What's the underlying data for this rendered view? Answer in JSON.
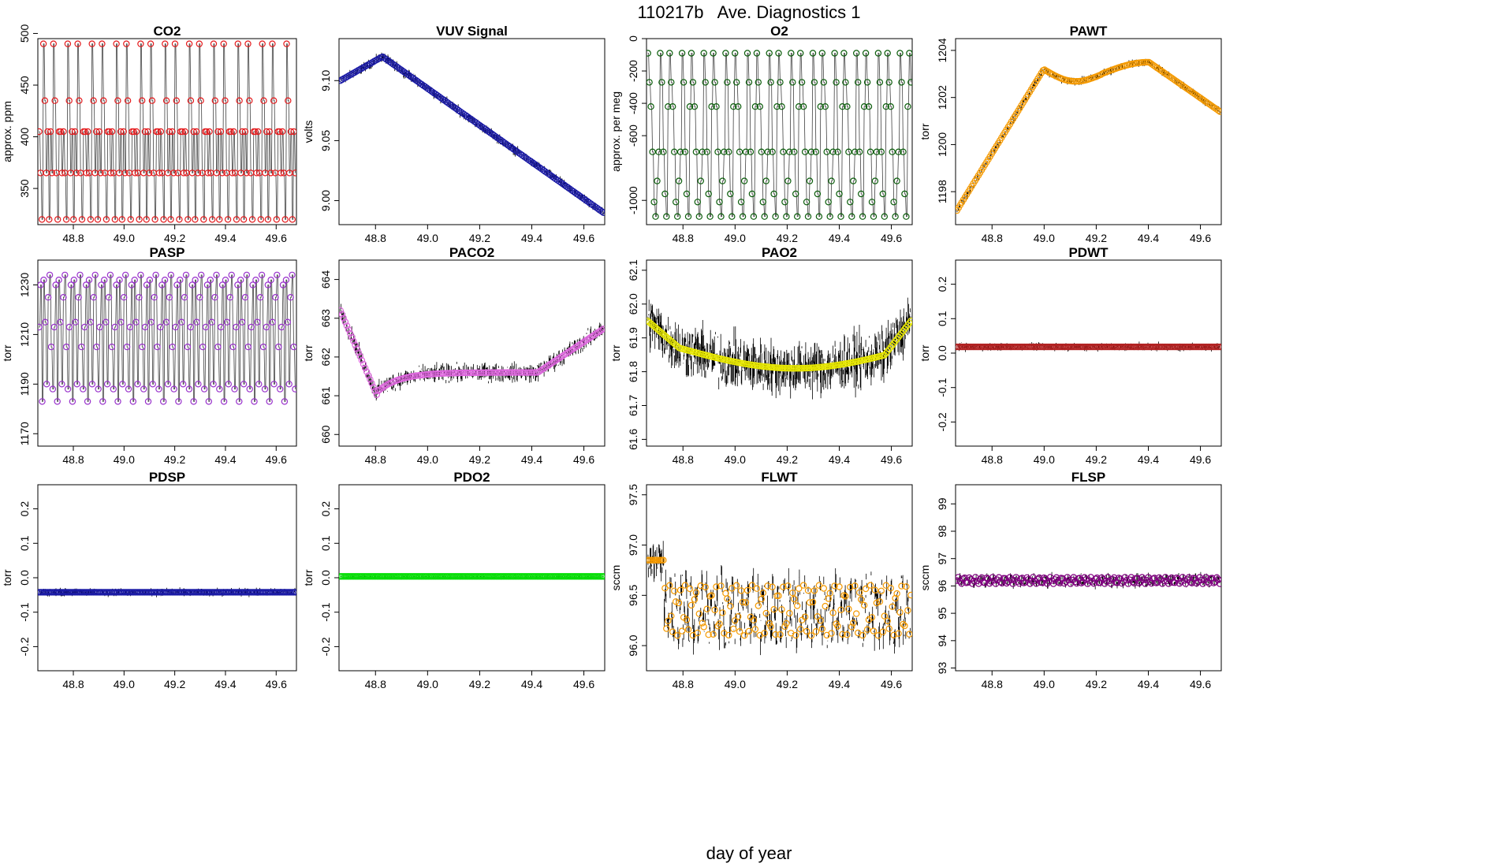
{
  "figure": {
    "title": "110217b   Ave. Diagnostics 1",
    "xlabel": "day of year"
  },
  "colors": {
    "red": "#e41a1c",
    "blue": "#1a1aa6",
    "darkgreen": "#0b5d0b",
    "orange": "#f59a00",
    "purple": "#9932cc",
    "violet": "#dd66dd",
    "yellow": "#e6e600",
    "darkred": "#b22222",
    "green": "#00dd00",
    "darkpurple": "#800080"
  },
  "chart_data": [
    {
      "type": "scatter",
      "title": "CO2",
      "ylabel": "approx. ppm",
      "xlabel": "",
      "xlim": [
        48.66,
        49.68
      ],
      "ylim": [
        315,
        495
      ],
      "xticks": [
        "48.8",
        "49.0",
        "49.2",
        "49.4",
        "49.6"
      ],
      "xtick_values": [
        48.8,
        49.0,
        49.2,
        49.4,
        49.6
      ],
      "yticks": [
        "350",
        "400",
        "450",
        "500"
      ],
      "ytick_values": [
        350,
        400,
        450,
        500
      ],
      "color": "red",
      "pattern": "co2",
      "n_points": 180,
      "noise": 0
    },
    {
      "type": "scatter",
      "title": "VUV Signal",
      "ylabel": "volts",
      "xlabel": "",
      "xlim": [
        48.66,
        49.68
      ],
      "ylim": [
        8.98,
        9.135
      ],
      "xticks": [
        "48.8",
        "49.0",
        "49.2",
        "49.4",
        "49.6"
      ],
      "xtick_values": [
        48.8,
        49.0,
        49.2,
        49.4,
        49.6
      ],
      "yticks": [
        "9.00",
        "9.05",
        "9.10"
      ],
      "ytick_values": [
        9.0,
        9.05,
        9.1
      ],
      "color": "blue",
      "pattern": "vuv",
      "n_points": 150,
      "noise": 0.006
    },
    {
      "type": "scatter",
      "title": "O2",
      "ylabel": "approx. per meg",
      "xlabel": "",
      "xlim": [
        48.66,
        49.68
      ],
      "ylim": [
        -1150,
        0
      ],
      "xticks": [
        "48.8",
        "49.0",
        "49.2",
        "49.4",
        "49.6"
      ],
      "xtick_values": [
        48.8,
        49.0,
        49.2,
        49.4,
        49.6
      ],
      "yticks": [
        "0",
        "-200",
        "-400",
        "-600",
        "-1000"
      ],
      "ytick_values": [
        0,
        -200,
        -400,
        -600,
        -1000
      ],
      "color": "darkgreen",
      "pattern": "o2",
      "n_points": 170,
      "noise": 0
    },
    {
      "type": "scatter",
      "title": "PAWT",
      "ylabel": "torr",
      "xlabel": "",
      "xlim": [
        48.66,
        49.68
      ],
      "ylim": [
        1196.6,
        1204.5
      ],
      "xticks": [
        "48.8",
        "49.0",
        "49.2",
        "49.4",
        "49.6"
      ],
      "xtick_values": [
        48.8,
        49.0,
        49.2,
        49.4,
        49.6
      ],
      "yticks": [
        "1198",
        "1200",
        "1202",
        "1204"
      ],
      "ytick_values": [
        1198,
        1200,
        1202,
        1204
      ],
      "color": "orange",
      "pattern": "pawt",
      "n_points": 160,
      "noise": 0.25
    },
    {
      "type": "scatter",
      "title": "PASP",
      "ylabel": "torr",
      "xlabel": "",
      "xlim": [
        48.66,
        49.68
      ],
      "ylim": [
        1165,
        1240
      ],
      "xticks": [
        "48.8",
        "49.0",
        "49.2",
        "49.4",
        "49.6"
      ],
      "xtick_values": [
        48.8,
        49.0,
        49.2,
        49.4,
        49.6
      ],
      "yticks": [
        "1170",
        "1190",
        "1210",
        "1230"
      ],
      "ytick_values": [
        1170,
        1190,
        1210,
        1230
      ],
      "color": "purple",
      "pattern": "pasp",
      "n_points": 170,
      "noise": 0
    },
    {
      "type": "scatter",
      "title": "PACO2",
      "ylabel": "torr",
      "xlabel": "",
      "xlim": [
        48.66,
        49.68
      ],
      "ylim": [
        659.7,
        664.5
      ],
      "xticks": [
        "48.8",
        "49.0",
        "49.2",
        "49.4",
        "49.6"
      ],
      "xtick_values": [
        48.8,
        49.0,
        49.2,
        49.4,
        49.6
      ],
      "yticks": [
        "660",
        "661",
        "662",
        "663",
        "664"
      ],
      "ytick_values": [
        660,
        661,
        662,
        663,
        664
      ],
      "color": "violet",
      "pattern": "paco2",
      "n_points": 160,
      "noise": 0.35
    },
    {
      "type": "scatter",
      "title": "PAO2",
      "ylabel": "torr",
      "xlabel": "",
      "xlim": [
        48.66,
        49.68
      ],
      "ylim": [
        61.58,
        62.13
      ],
      "xticks": [
        "48.8",
        "49.0",
        "49.2",
        "49.4",
        "49.6"
      ],
      "xtick_values": [
        48.8,
        49.0,
        49.2,
        49.4,
        49.6
      ],
      "yticks": [
        "61.6",
        "61.7",
        "61.8",
        "61.9",
        "62.0",
        "62.1"
      ],
      "ytick_values": [
        61.6,
        61.7,
        61.8,
        61.9,
        62.0,
        62.1
      ],
      "color": "yellow",
      "pattern": "pao2",
      "n_points": 170,
      "noise": 0.12
    },
    {
      "type": "scatter",
      "title": "PDWT",
      "ylabel": "torr",
      "xlabel": "",
      "xlim": [
        48.66,
        49.68
      ],
      "ylim": [
        -0.27,
        0.27
      ],
      "xticks": [
        "48.8",
        "49.0",
        "49.2",
        "49.4",
        "49.6"
      ],
      "xtick_values": [
        48.8,
        49.0,
        49.2,
        49.4,
        49.6
      ],
      "yticks": [
        "-0.2",
        "-0.1",
        "0.0",
        "0.1",
        "0.2"
      ],
      "ytick_values": [
        -0.2,
        -0.1,
        0.0,
        0.1,
        0.2
      ],
      "color": "darkred",
      "pattern": "pdwt",
      "n_points": 180,
      "noise": 0.016
    },
    {
      "type": "scatter",
      "title": "PDSP",
      "ylabel": "torr",
      "xlabel": "",
      "xlim": [
        48.66,
        49.68
      ],
      "ylim": [
        -0.27,
        0.27
      ],
      "xticks": [
        "48.8",
        "49.0",
        "49.2",
        "49.4",
        "49.6"
      ],
      "xtick_values": [
        48.8,
        49.0,
        49.2,
        49.4,
        49.6
      ],
      "yticks": [
        "-0.2",
        "-0.1",
        "0.0",
        "0.1",
        "0.2"
      ],
      "ytick_values": [
        -0.2,
        -0.1,
        0.0,
        0.1,
        0.2
      ],
      "color": "blue",
      "pattern": "pdsp",
      "n_points": 180,
      "noise": 0.016
    },
    {
      "type": "scatter",
      "title": "PDO2",
      "ylabel": "torr",
      "xlabel": "",
      "xlim": [
        48.66,
        49.68
      ],
      "ylim": [
        -0.27,
        0.27
      ],
      "xticks": [
        "48.8",
        "49.0",
        "49.2",
        "49.4",
        "49.6"
      ],
      "xtick_values": [
        48.8,
        49.0,
        49.2,
        49.4,
        49.6
      ],
      "yticks": [
        "-0.2",
        "-0.1",
        "0.0",
        "0.1",
        "0.2"
      ],
      "ytick_values": [
        -0.2,
        -0.1,
        0.0,
        0.1,
        0.2
      ],
      "color": "green",
      "pattern": "pdo2",
      "n_points": 180,
      "noise": 0.002
    },
    {
      "type": "scatter",
      "title": "FLWT",
      "ylabel": "sccm",
      "xlabel": "",
      "xlim": [
        48.66,
        49.68
      ],
      "ylim": [
        95.75,
        97.6
      ],
      "xticks": [
        "48.8",
        "49.0",
        "49.2",
        "49.4",
        "49.6"
      ],
      "xtick_values": [
        48.8,
        49.0,
        49.2,
        49.4,
        49.6
      ],
      "yticks": [
        "96.0",
        "96.5",
        "97.0",
        "97.5"
      ],
      "ytick_values": [
        96.0,
        96.5,
        97.0,
        97.5
      ],
      "color": "orange",
      "pattern": "flwt",
      "n_points": 170,
      "noise": 0.25
    },
    {
      "type": "scatter",
      "title": "FLSP",
      "ylabel": "sccm",
      "xlabel": "",
      "xlim": [
        48.66,
        49.68
      ],
      "ylim": [
        92.9,
        99.7
      ],
      "xticks": [
        "48.8",
        "49.0",
        "49.2",
        "49.4",
        "49.6"
      ],
      "xtick_values": [
        48.8,
        49.0,
        49.2,
        49.4,
        49.6
      ],
      "yticks": [
        "93",
        "94",
        "95",
        "96",
        "97",
        "98",
        "99"
      ],
      "ytick_values": [
        93,
        94,
        95,
        96,
        97,
        98,
        99
      ],
      "color": "darkpurple",
      "pattern": "flsp",
      "n_points": 170,
      "noise": 0.25
    }
  ]
}
